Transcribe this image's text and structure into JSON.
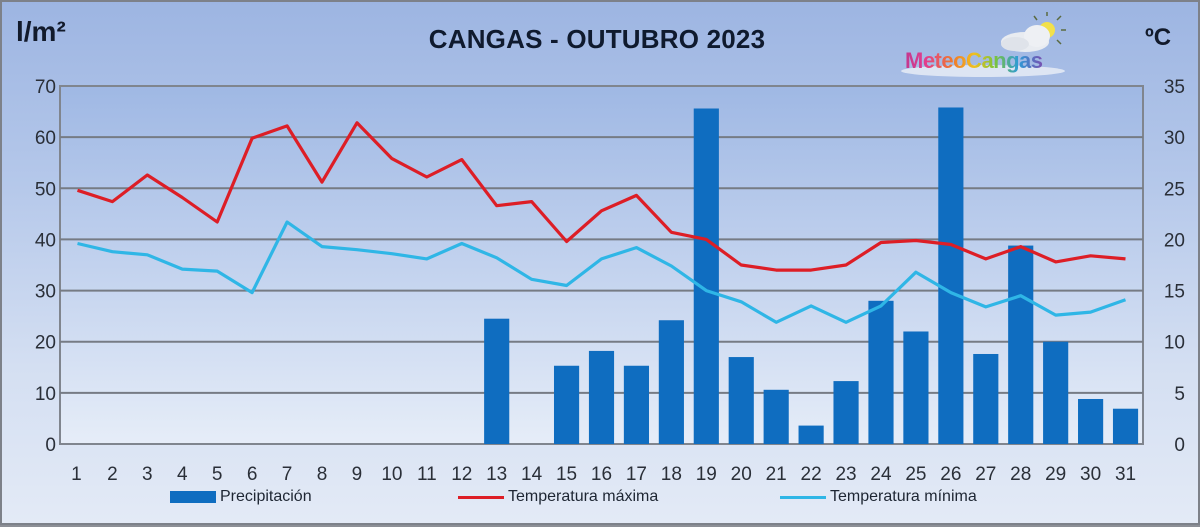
{
  "header": {
    "title": "CANGAS - OUTUBRO 2023",
    "left_axis_unit": "l/m²",
    "right_axis_unit": "ºC",
    "logo_text": "MeteoCangas"
  },
  "legend": {
    "items": [
      {
        "label": "Precipitación",
        "type": "bar",
        "color": "#0f6dc0"
      },
      {
        "label": "Temperatura máxima",
        "type": "line",
        "color": "#dd1e26"
      },
      {
        "label": "Temperatura mínima",
        "type": "line",
        "color": "#2fb6e6"
      }
    ]
  },
  "axes": {
    "left_ticks": [
      "0",
      "10",
      "20",
      "30",
      "40",
      "50",
      "60",
      "70"
    ],
    "right_ticks": [
      "0",
      "5",
      "10",
      "15",
      "20",
      "25",
      "30",
      "35"
    ],
    "x_ticks": [
      "1",
      "2",
      "3",
      "4",
      "5",
      "6",
      "7",
      "8",
      "9",
      "10",
      "11",
      "12",
      "13",
      "14",
      "15",
      "16",
      "17",
      "18",
      "19",
      "20",
      "21",
      "22",
      "23",
      "24",
      "25",
      "26",
      "27",
      "28",
      "29",
      "30",
      "31"
    ]
  },
  "chart_data": {
    "type": "bar",
    "title": "CANGAS - OUTUBRO 2023",
    "xlabel": "",
    "ylabel": "l/m²",
    "y2label": "ºC",
    "ylim": [
      0,
      70
    ],
    "y2lim": [
      0,
      35
    ],
    "grid": true,
    "legend_position": "bottom",
    "categories": [
      1,
      2,
      3,
      4,
      5,
      6,
      7,
      8,
      9,
      10,
      11,
      12,
      13,
      14,
      15,
      16,
      17,
      18,
      19,
      20,
      21,
      22,
      23,
      24,
      25,
      26,
      27,
      28,
      29,
      30,
      31
    ],
    "series": [
      {
        "name": "Precipitación",
        "type": "bar",
        "axis": "left",
        "color": "#0f6dc0",
        "values": [
          0,
          0,
          0,
          0,
          0,
          0,
          0,
          0,
          0,
          0,
          0,
          0,
          24.5,
          0,
          15.3,
          18.2,
          15.3,
          24.2,
          65.6,
          17.0,
          10.6,
          3.6,
          12.3,
          28.0,
          22.0,
          65.8,
          17.6,
          38.8,
          20.0,
          8.8,
          6.9
        ]
      },
      {
        "name": "Temperatura máxima",
        "type": "line",
        "axis": "right",
        "color": "#dd1e26",
        "values": [
          24.8,
          23.7,
          26.3,
          24.1,
          21.7,
          29.9,
          31.1,
          25.6,
          31.4,
          27.9,
          26.1,
          27.8,
          23.3,
          23.7,
          19.8,
          22.8,
          24.3,
          20.7,
          20.0,
          17.5,
          17.0,
          17.0,
          17.5,
          19.7,
          19.9,
          19.5,
          18.1,
          19.3,
          17.8,
          18.4,
          18.1
        ]
      },
      {
        "name": "Temperatura mínima",
        "type": "line",
        "axis": "right",
        "color": "#2fb6e6",
        "values": [
          19.6,
          18.8,
          18.5,
          17.1,
          16.9,
          14.8,
          21.7,
          19.3,
          19.0,
          18.6,
          18.1,
          19.6,
          18.2,
          16.1,
          15.5,
          18.1,
          19.2,
          17.4,
          15.0,
          13.9,
          11.9,
          13.5,
          11.9,
          13.5,
          16.8,
          14.8,
          13.4,
          14.5,
          12.6,
          12.9,
          14.1
        ]
      }
    ]
  }
}
